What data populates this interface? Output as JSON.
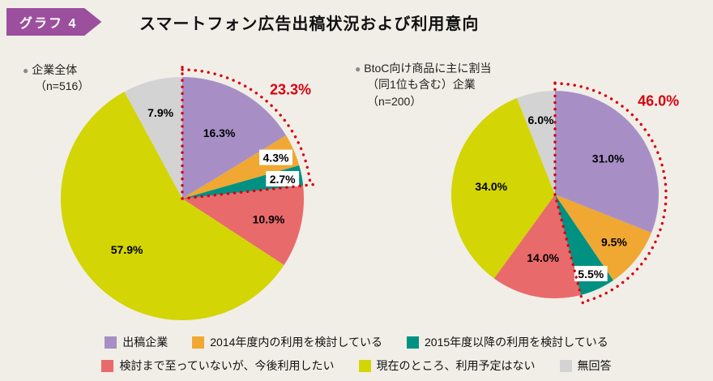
{
  "page": {
    "background": "#f1eee7"
  },
  "header": {
    "badge_label": "グラフ 4",
    "badge_color": "#9b4f9d",
    "title": "スマートフォン広告出稿状況および利用意向"
  },
  "colors": {
    "purple": "#a78fc6",
    "orange": "#f0a832",
    "teal": "#009183",
    "salmon": "#e96a6b",
    "yellow_green": "#d3d505",
    "gray": "#d3d3d3",
    "highlight_red": "#d7000f"
  },
  "legend": {
    "rows": [
      [
        {
          "label": "出稿企業",
          "color": "#a78fc6"
        },
        {
          "label": "2014年度内の利用を検討している",
          "color": "#f0a832"
        },
        {
          "label": "2015年度以降の利用を検討している",
          "color": "#009183"
        }
      ],
      [
        {
          "label": "検討まで至っていないが、今後利用したい",
          "color": "#e96a6b"
        },
        {
          "label": "現在のところ、利用予定はない",
          "color": "#d3d505"
        },
        {
          "label": "無回答",
          "color": "#d3d3d3"
        }
      ]
    ]
  },
  "chart_data": [
    {
      "type": "pie",
      "title": "企業全体",
      "n": 516,
      "header_lines": [
        "企業全体",
        "（n=516）"
      ],
      "start_angle_deg": 0,
      "direction": "clockwise",
      "slices": [
        {
          "label": "出稿企業",
          "value": 16.3,
          "color": "#a78fc6"
        },
        {
          "label": "2014年度内の利用を検討している",
          "value": 4.3,
          "color": "#f0a832"
        },
        {
          "label": "2015年度以降の利用を検討している",
          "value": 2.7,
          "color": "#009183"
        },
        {
          "label": "検討まで至っていないが、今後利用したい",
          "value": 10.9,
          "color": "#e96a6b"
        },
        {
          "label": "現在のところ、利用予定はない",
          "value": 57.9,
          "color": "#d3d505"
        },
        {
          "label": "無回答",
          "value": 7.9,
          "color": "#d3d3d3"
        }
      ],
      "highlight": {
        "value_label": "23.3%",
        "span_slices": 3,
        "color": "#d7000f",
        "label_angle_deg": 40,
        "label_radius_factor": 1.12
      },
      "layout": {
        "radius": 150,
        "legend_position": "bottom"
      }
    },
    {
      "type": "pie",
      "title": "BtoC向け商品に主に割当（同1位も含む）企業",
      "n": 200,
      "header_lines": [
        "BtoC向け商品に主に割当",
        "（同1位も含む）企業",
        "（n=200）"
      ],
      "start_angle_deg": 0,
      "direction": "clockwise",
      "slices": [
        {
          "label": "出稿企業",
          "value": 31.0,
          "color": "#a78fc6"
        },
        {
          "label": "2014年度内の利用を検討している",
          "value": 9.5,
          "color": "#f0a832"
        },
        {
          "label": "2015年度以降の利用を検討している",
          "value": 5.5,
          "color": "#009183"
        },
        {
          "label": "検討まで至っていないが、今後利用したい",
          "value": 14.0,
          "color": "#e96a6b"
        },
        {
          "label": "現在のところ、利用予定はない",
          "value": 34.0,
          "color": "#d3d505"
        },
        {
          "label": "無回答",
          "value": 6.0,
          "color": "#d3d3d3"
        }
      ],
      "highlight": {
        "value_label": "46.0%",
        "span_slices": 3,
        "color": "#d7000f",
        "label_angle_deg": 43,
        "label_radius_factor": 1.17
      },
      "layout": {
        "radius": 128,
        "legend_position": "bottom"
      }
    }
  ]
}
